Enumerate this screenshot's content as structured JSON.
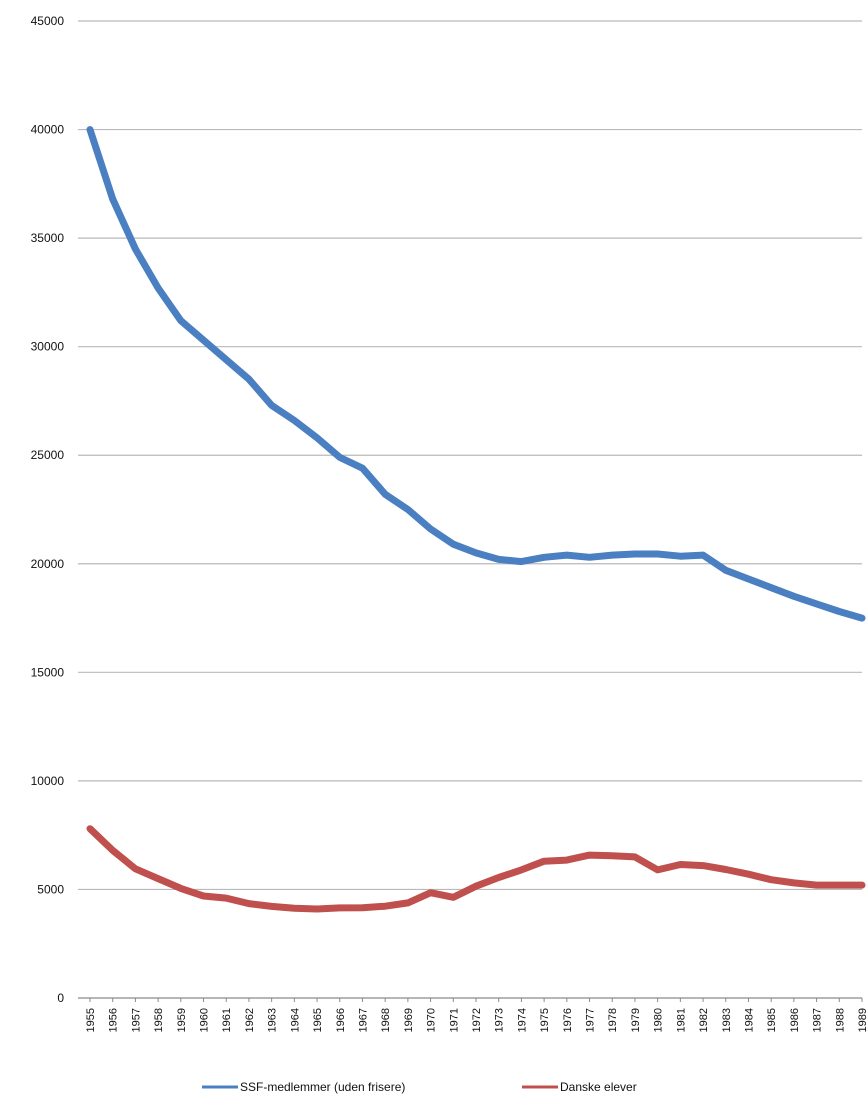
{
  "chart_data": {
    "type": "line",
    "title": "",
    "xlabel": "",
    "ylabel": "",
    "x": [
      "1955",
      "1956",
      "1957",
      "1958",
      "1959",
      "1960",
      "1961",
      "1962",
      "1963",
      "1964",
      "1965",
      "1966",
      "1967",
      "1968",
      "1969",
      "1970",
      "1971",
      "1972",
      "1973",
      "1974",
      "1975",
      "1976",
      "1977",
      "1978",
      "1979",
      "1980",
      "1981",
      "1982",
      "1983",
      "1984",
      "1985",
      "1986",
      "1987",
      "1988",
      "1989"
    ],
    "y_ticks": [
      "0",
      "5000",
      "10000",
      "15000",
      "20000",
      "25000",
      "30000",
      "35000",
      "40000",
      "45000"
    ],
    "ylim": [
      0,
      45000
    ],
    "grid": true,
    "legend_position": "bottom",
    "series": [
      {
        "name": "SSF-medlemmer (uden frisere)",
        "color": "#4a7fc1",
        "values": [
          40000,
          36800,
          34500,
          32700,
          31200,
          30300,
          29400,
          28500,
          27300,
          26600,
          25800,
          24900,
          24400,
          23200,
          22500,
          21600,
          20900,
          20500,
          20200,
          20100,
          20300,
          20400,
          20300,
          20400,
          20450,
          20450,
          20350,
          20400,
          19700,
          19300,
          18900,
          18500,
          18150,
          17800,
          17500
        ]
      },
      {
        "name": "Danske elever",
        "color": "#c0504d",
        "values": [
          7800,
          6800,
          5950,
          5500,
          5050,
          4700,
          4600,
          4350,
          4220,
          4130,
          4100,
          4150,
          4160,
          4230,
          4380,
          4850,
          4640,
          5150,
          5550,
          5900,
          6300,
          6350,
          6580,
          6550,
          6500,
          5900,
          6150,
          6100,
          5920,
          5700,
          5450,
          5300,
          5200,
          5200,
          5200
        ]
      }
    ]
  }
}
